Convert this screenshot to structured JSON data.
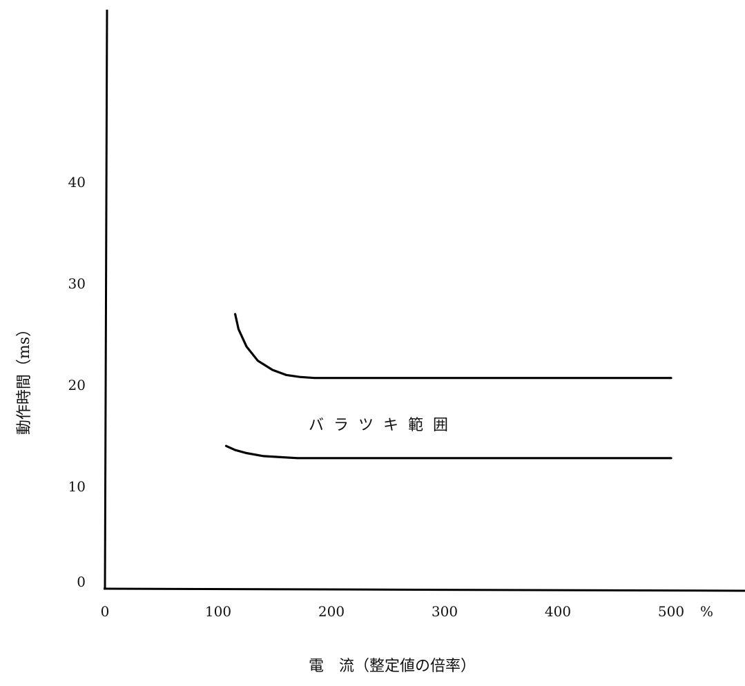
{
  "chart_data": {
    "type": "line",
    "title": "",
    "xlabel": "電　流（整定値の倍率）",
    "ylabel": "動作時間（ms）",
    "x_unit_label": "%",
    "xlim": [
      0,
      570
    ],
    "ylim": [
      0,
      50
    ],
    "x_ticks": [
      "0",
      "100",
      "200",
      "300",
      "400",
      "500"
    ],
    "x_tick_values": [
      0,
      100,
      200,
      300,
      400,
      500
    ],
    "y_ticks": [
      "0",
      "10",
      "20",
      "30",
      "40"
    ],
    "y_tick_values": [
      0,
      10,
      20,
      30,
      40
    ],
    "grid": false,
    "annotation": "バラツキ範囲",
    "annotation_pos": {
      "x": 300,
      "y": 16
    },
    "series": [
      {
        "x": [
          115,
          118,
          125,
          135,
          148,
          160,
          172,
          185,
          200,
          300,
          400,
          500
        ],
        "y": [
          27,
          25.5,
          23.8,
          22.4,
          21.5,
          21.0,
          20.8,
          20.7,
          20.7,
          20.7,
          20.7,
          20.7
        ]
      },
      {
        "x": [
          107,
          115,
          125,
          140,
          155,
          170,
          190,
          200,
          300,
          400,
          500
        ],
        "y": [
          14.0,
          13.6,
          13.3,
          13.0,
          12.9,
          12.8,
          12.8,
          12.8,
          12.8,
          12.8,
          12.8
        ]
      }
    ]
  }
}
